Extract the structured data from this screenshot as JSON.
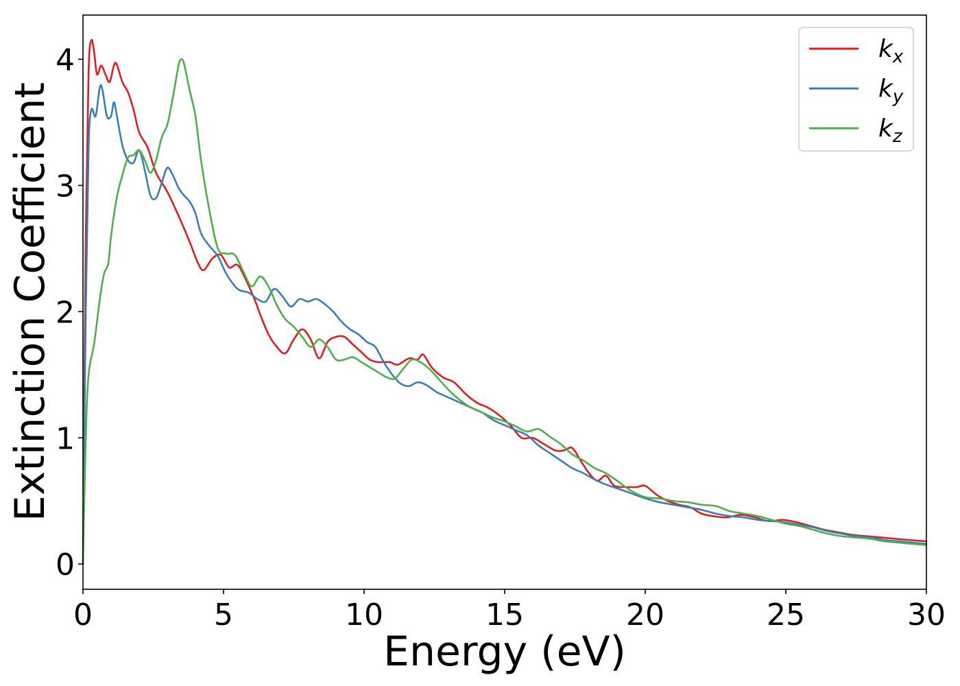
{
  "chart_data": {
    "type": "line",
    "xlabel": "Energy (eV)",
    "ylabel": "Extinction Coefficient",
    "xlim": [
      0,
      30
    ],
    "ylim": [
      -0.2,
      4.35
    ],
    "xticks": [
      0,
      5,
      10,
      15,
      20,
      25,
      30
    ],
    "yticks": [
      0,
      1,
      2,
      3,
      4
    ],
    "grid": false,
    "legend_position": "top-right",
    "series": [
      {
        "name": "k_x",
        "label_main": "k",
        "label_sub": "x",
        "color": "#e41a1c",
        "points": [
          [
            0,
            0
          ],
          [
            0.1,
            2.6
          ],
          [
            0.2,
            3.9
          ],
          [
            0.3,
            4.15
          ],
          [
            0.4,
            4.05
          ],
          [
            0.5,
            3.88
          ],
          [
            0.65,
            3.95
          ],
          [
            0.8,
            3.88
          ],
          [
            0.95,
            3.82
          ],
          [
            1.1,
            3.95
          ],
          [
            1.2,
            3.96
          ],
          [
            1.4,
            3.82
          ],
          [
            1.6,
            3.74
          ],
          [
            1.8,
            3.6
          ],
          [
            2.0,
            3.42
          ],
          [
            2.3,
            3.3
          ],
          [
            2.6,
            3.1
          ],
          [
            3.0,
            2.95
          ],
          [
            3.4,
            2.76
          ],
          [
            3.8,
            2.55
          ],
          [
            4.1,
            2.38
          ],
          [
            4.3,
            2.33
          ],
          [
            4.6,
            2.42
          ],
          [
            4.9,
            2.45
          ],
          [
            5.2,
            2.35
          ],
          [
            5.5,
            2.37
          ],
          [
            5.8,
            2.25
          ],
          [
            6.1,
            2.1
          ],
          [
            6.3,
            1.98
          ],
          [
            6.6,
            1.82
          ],
          [
            6.9,
            1.72
          ],
          [
            7.2,
            1.67
          ],
          [
            7.5,
            1.78
          ],
          [
            7.8,
            1.86
          ],
          [
            8.1,
            1.78
          ],
          [
            8.4,
            1.63
          ],
          [
            8.7,
            1.76
          ],
          [
            9.0,
            1.8
          ],
          [
            9.3,
            1.8
          ],
          [
            9.6,
            1.74
          ],
          [
            9.9,
            1.68
          ],
          [
            10.2,
            1.62
          ],
          [
            10.5,
            1.6
          ],
          [
            10.9,
            1.6
          ],
          [
            11.2,
            1.58
          ],
          [
            11.6,
            1.63
          ],
          [
            11.9,
            1.62
          ],
          [
            12.1,
            1.66
          ],
          [
            12.4,
            1.56
          ],
          [
            12.8,
            1.48
          ],
          [
            13.2,
            1.44
          ],
          [
            13.6,
            1.35
          ],
          [
            14.0,
            1.28
          ],
          [
            14.4,
            1.24
          ],
          [
            14.8,
            1.18
          ],
          [
            15.2,
            1.1
          ],
          [
            15.6,
            1.0
          ],
          [
            16.0,
            1.0
          ],
          [
            16.4,
            0.95
          ],
          [
            16.8,
            0.9
          ],
          [
            17.1,
            0.9
          ],
          [
            17.4,
            0.92
          ],
          [
            17.7,
            0.82
          ],
          [
            18.0,
            0.72
          ],
          [
            18.3,
            0.66
          ],
          [
            18.6,
            0.7
          ],
          [
            18.9,
            0.62
          ],
          [
            19.3,
            0.61
          ],
          [
            19.7,
            0.61
          ],
          [
            20.0,
            0.62
          ],
          [
            20.4,
            0.55
          ],
          [
            20.8,
            0.5
          ],
          [
            21.2,
            0.47
          ],
          [
            21.6,
            0.45
          ],
          [
            22.0,
            0.4
          ],
          [
            22.4,
            0.38
          ],
          [
            22.9,
            0.37
          ],
          [
            23.4,
            0.39
          ],
          [
            23.9,
            0.37
          ],
          [
            24.4,
            0.34
          ],
          [
            24.9,
            0.35
          ],
          [
            25.4,
            0.33
          ],
          [
            25.9,
            0.3
          ],
          [
            26.4,
            0.27
          ],
          [
            26.9,
            0.25
          ],
          [
            27.4,
            0.23
          ],
          [
            27.9,
            0.22
          ],
          [
            28.4,
            0.21
          ],
          [
            28.9,
            0.2
          ],
          [
            29.4,
            0.19
          ],
          [
            30,
            0.18
          ]
        ]
      },
      {
        "name": "k_y",
        "label_main": "k",
        "label_sub": "y",
        "color": "#377eb8",
        "points": [
          [
            0,
            0
          ],
          [
            0.1,
            2.0
          ],
          [
            0.2,
            3.3
          ],
          [
            0.3,
            3.6
          ],
          [
            0.45,
            3.55
          ],
          [
            0.6,
            3.78
          ],
          [
            0.7,
            3.75
          ],
          [
            0.85,
            3.55
          ],
          [
            1.0,
            3.55
          ],
          [
            1.1,
            3.66
          ],
          [
            1.2,
            3.56
          ],
          [
            1.4,
            3.32
          ],
          [
            1.6,
            3.2
          ],
          [
            1.8,
            3.18
          ],
          [
            2.0,
            3.28
          ],
          [
            2.2,
            3.12
          ],
          [
            2.4,
            2.92
          ],
          [
            2.6,
            2.9
          ],
          [
            2.8,
            3.02
          ],
          [
            3.0,
            3.14
          ],
          [
            3.2,
            3.08
          ],
          [
            3.4,
            2.98
          ],
          [
            3.6,
            2.92
          ],
          [
            3.8,
            2.87
          ],
          [
            4.0,
            2.78
          ],
          [
            4.2,
            2.62
          ],
          [
            4.5,
            2.52
          ],
          [
            4.8,
            2.44
          ],
          [
            5.1,
            2.3
          ],
          [
            5.5,
            2.18
          ],
          [
            5.9,
            2.15
          ],
          [
            6.2,
            2.1
          ],
          [
            6.5,
            2.08
          ],
          [
            6.8,
            2.18
          ],
          [
            7.1,
            2.12
          ],
          [
            7.4,
            2.04
          ],
          [
            7.7,
            2.1
          ],
          [
            8.0,
            2.08
          ],
          [
            8.3,
            2.1
          ],
          [
            8.6,
            2.06
          ],
          [
            8.9,
            2.0
          ],
          [
            9.2,
            1.92
          ],
          [
            9.5,
            1.86
          ],
          [
            9.8,
            1.82
          ],
          [
            10.1,
            1.76
          ],
          [
            10.4,
            1.72
          ],
          [
            10.7,
            1.6
          ],
          [
            11.0,
            1.5
          ],
          [
            11.3,
            1.43
          ],
          [
            11.6,
            1.41
          ],
          [
            11.9,
            1.44
          ],
          [
            12.2,
            1.42
          ],
          [
            12.6,
            1.36
          ],
          [
            13.0,
            1.32
          ],
          [
            13.4,
            1.28
          ],
          [
            13.8,
            1.24
          ],
          [
            14.2,
            1.2
          ],
          [
            14.6,
            1.14
          ],
          [
            15.0,
            1.1
          ],
          [
            15.4,
            1.06
          ],
          [
            15.8,
            1.02
          ],
          [
            16.2,
            0.94
          ],
          [
            16.6,
            0.88
          ],
          [
            17.0,
            0.82
          ],
          [
            17.4,
            0.76
          ],
          [
            17.8,
            0.72
          ],
          [
            18.2,
            0.67
          ],
          [
            18.6,
            0.63
          ],
          [
            19.0,
            0.6
          ],
          [
            19.5,
            0.56
          ],
          [
            20.0,
            0.52
          ],
          [
            20.5,
            0.49
          ],
          [
            21.0,
            0.47
          ],
          [
            21.5,
            0.45
          ],
          [
            22.0,
            0.43
          ],
          [
            22.5,
            0.4
          ],
          [
            23.0,
            0.38
          ],
          [
            23.5,
            0.37
          ],
          [
            24.0,
            0.35
          ],
          [
            24.5,
            0.34
          ],
          [
            25.0,
            0.33
          ],
          [
            25.5,
            0.31
          ],
          [
            26.0,
            0.29
          ],
          [
            26.5,
            0.26
          ],
          [
            27.0,
            0.24
          ],
          [
            27.5,
            0.22
          ],
          [
            28.0,
            0.21
          ],
          [
            28.5,
            0.19
          ],
          [
            29.0,
            0.18
          ],
          [
            29.5,
            0.17
          ],
          [
            30,
            0.16
          ]
        ]
      },
      {
        "name": "k_z",
        "label_main": "k",
        "label_sub": "z",
        "color": "#4daf4a",
        "points": [
          [
            0,
            0
          ],
          [
            0.1,
            1.0
          ],
          [
            0.2,
            1.5
          ],
          [
            0.4,
            1.75
          ],
          [
            0.6,
            2.1
          ],
          [
            0.75,
            2.3
          ],
          [
            0.9,
            2.38
          ],
          [
            1.0,
            2.6
          ],
          [
            1.2,
            2.9
          ],
          [
            1.4,
            3.08
          ],
          [
            1.6,
            3.22
          ],
          [
            1.8,
            3.24
          ],
          [
            2.0,
            3.28
          ],
          [
            2.2,
            3.2
          ],
          [
            2.4,
            3.1
          ],
          [
            2.6,
            3.2
          ],
          [
            2.8,
            3.38
          ],
          [
            3.0,
            3.48
          ],
          [
            3.2,
            3.7
          ],
          [
            3.4,
            3.95
          ],
          [
            3.5,
            4.0
          ],
          [
            3.6,
            3.96
          ],
          [
            3.8,
            3.75
          ],
          [
            4.0,
            3.55
          ],
          [
            4.2,
            3.2
          ],
          [
            4.5,
            2.8
          ],
          [
            4.8,
            2.5
          ],
          [
            5.1,
            2.46
          ],
          [
            5.4,
            2.45
          ],
          [
            5.7,
            2.32
          ],
          [
            6.0,
            2.2
          ],
          [
            6.3,
            2.28
          ],
          [
            6.6,
            2.2
          ],
          [
            6.9,
            2.05
          ],
          [
            7.2,
            1.94
          ],
          [
            7.5,
            1.88
          ],
          [
            7.8,
            1.8
          ],
          [
            8.1,
            1.72
          ],
          [
            8.4,
            1.78
          ],
          [
            8.7,
            1.72
          ],
          [
            9.0,
            1.62
          ],
          [
            9.3,
            1.62
          ],
          [
            9.6,
            1.64
          ],
          [
            9.9,
            1.6
          ],
          [
            10.2,
            1.56
          ],
          [
            10.5,
            1.52
          ],
          [
            10.8,
            1.48
          ],
          [
            11.1,
            1.47
          ],
          [
            11.4,
            1.55
          ],
          [
            11.7,
            1.62
          ],
          [
            12.0,
            1.6
          ],
          [
            12.3,
            1.55
          ],
          [
            12.6,
            1.48
          ],
          [
            13.0,
            1.38
          ],
          [
            13.4,
            1.3
          ],
          [
            13.8,
            1.24
          ],
          [
            14.2,
            1.2
          ],
          [
            14.6,
            1.16
          ],
          [
            15.0,
            1.13
          ],
          [
            15.4,
            1.09
          ],
          [
            15.8,
            1.05
          ],
          [
            16.2,
            1.07
          ],
          [
            16.6,
            1.01
          ],
          [
            17.0,
            0.95
          ],
          [
            17.4,
            0.87
          ],
          [
            17.8,
            0.82
          ],
          [
            18.2,
            0.76
          ],
          [
            18.6,
            0.72
          ],
          [
            19.0,
            0.66
          ],
          [
            19.5,
            0.58
          ],
          [
            20.0,
            0.53
          ],
          [
            20.5,
            0.52
          ],
          [
            21.0,
            0.5
          ],
          [
            21.5,
            0.49
          ],
          [
            22.0,
            0.47
          ],
          [
            22.5,
            0.46
          ],
          [
            23.0,
            0.42
          ],
          [
            23.5,
            0.4
          ],
          [
            24.0,
            0.38
          ],
          [
            24.5,
            0.35
          ],
          [
            25.0,
            0.32
          ],
          [
            25.5,
            0.3
          ],
          [
            26.0,
            0.27
          ],
          [
            26.5,
            0.24
          ],
          [
            27.0,
            0.22
          ],
          [
            27.5,
            0.21
          ],
          [
            28.0,
            0.2
          ],
          [
            28.5,
            0.18
          ],
          [
            29.0,
            0.17
          ],
          [
            29.5,
            0.16
          ],
          [
            30,
            0.15
          ]
        ]
      }
    ]
  }
}
